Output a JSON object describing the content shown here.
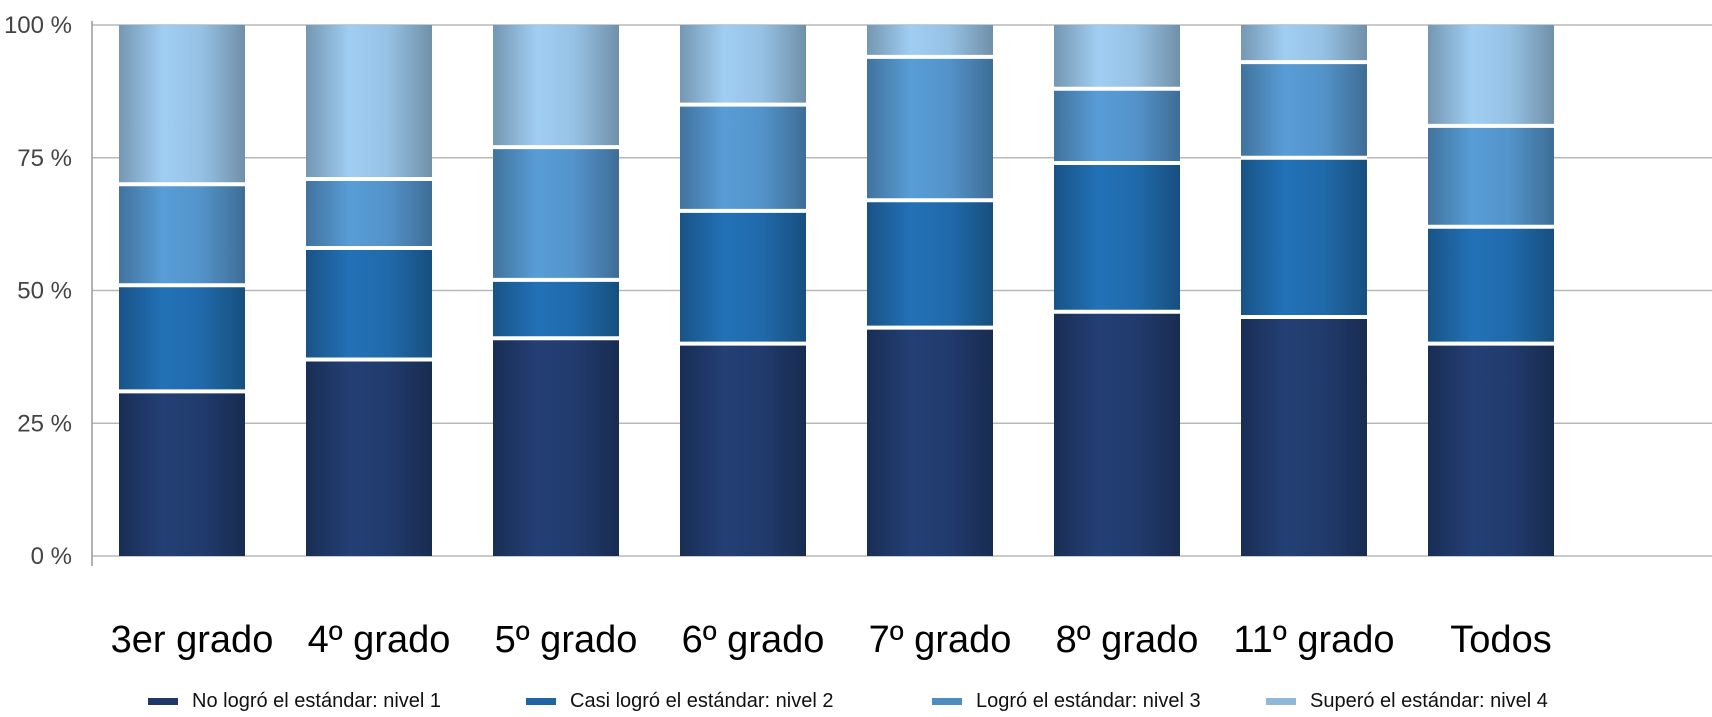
{
  "chart_data": {
    "type": "bar",
    "stacked": true,
    "percent": true,
    "categories": [
      "3er grado",
      "4º grado",
      "5º grado",
      "6º grado",
      "7º grado",
      "8º grado",
      "11º grado",
      "Todos"
    ],
    "series": [
      {
        "name": "No logró el estándar: nivel 1",
        "color": "#1f3868",
        "values": [
          31,
          37,
          41,
          40,
          43,
          46,
          45,
          40
        ]
      },
      {
        "name": "Casi logró el estándar: nivel 2",
        "color": "#1e65a3",
        "values": [
          20,
          21,
          11,
          25,
          24,
          28,
          30,
          22
        ]
      },
      {
        "name": "Logró el estándar: nivel 3",
        "color": "#4f8cc0",
        "values": [
          19,
          13,
          25,
          20,
          27,
          14,
          18,
          19
        ]
      },
      {
        "name": "Superó el estándar: nivel 4",
        "color": "#8fb8d9",
        "values": [
          30,
          29,
          23,
          15,
          6,
          12,
          7,
          19
        ]
      }
    ],
    "yticks": [
      "0 %",
      "25 %",
      "50 %",
      "75 %",
      "100 %"
    ],
    "ylim": [
      0,
      100
    ],
    "grid": true,
    "legend_position": "bottom",
    "title": "",
    "xlabel": "",
    "ylabel": ""
  }
}
